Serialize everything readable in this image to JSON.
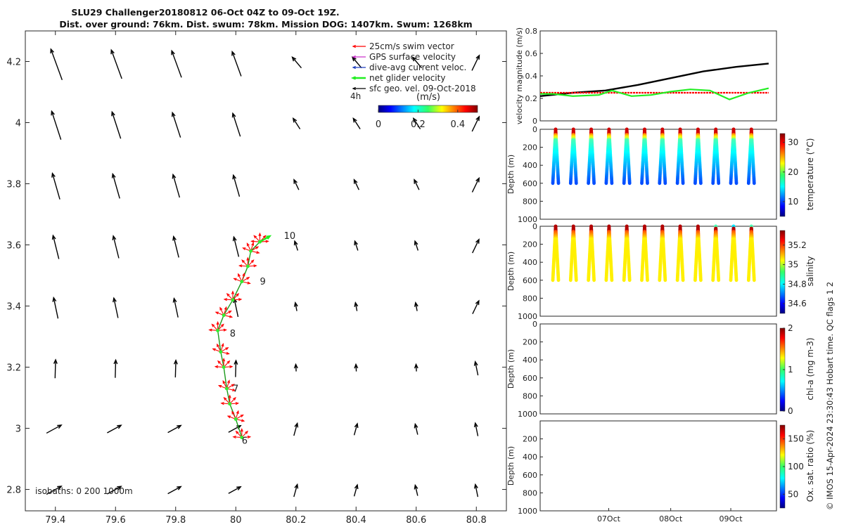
{
  "title": {
    "line1": "SLU29 Challenger20180812 06-Oct 04Z to 09-Oct 19Z.",
    "line2": "Dist. over ground: 76km. Dist. swum: 78km. Mission DOG: 1407km. Swum: 1268km"
  },
  "legend": {
    "items": [
      {
        "label": "25cm/s swim vector",
        "color": "#ff0000"
      },
      {
        "label": "GPS surface velocity",
        "color": "#cc33cc"
      },
      {
        "label": "dive-avg current veloc.",
        "color": "#1f3fbf"
      },
      {
        "label": "net glider velocity",
        "color": "#22ee22"
      },
      {
        "label": "sfc geo. vel. 09-Oct-2018",
        "color": "#000000"
      }
    ]
  },
  "map_labels": {
    "four_h": "4h",
    "units": "(m/s)",
    "isobaths": "isobaths: 0   200  1000m",
    "day_labels": [
      {
        "text": "10",
        "lon": 80.16,
        "lat": 3.62
      },
      {
        "text": "9",
        "lon": 80.08,
        "lat": 3.47
      },
      {
        "text": "8",
        "lon": 79.98,
        "lat": 3.3
      },
      {
        "text": "7",
        "lon": 79.99,
        "lat": 3.12
      },
      {
        "text": "6",
        "lon": 80.02,
        "lat": 2.95
      }
    ]
  },
  "footer": {
    "side_text": "© IMOS 15-Apr-2024 23:30:43 Hobart time. QC flags 1  2"
  },
  "chart_data": [
    {
      "type": "scatter",
      "name": "map",
      "xlim": [
        79.3,
        80.9
      ],
      "ylim": [
        2.73,
        4.3
      ],
      "xticks": [
        "79.4",
        "79.6",
        "79.8",
        "80",
        "80.2",
        "80.4",
        "80.6",
        "80.8"
      ],
      "yticks": [
        "2.8",
        "3",
        "3.2",
        "3.4",
        "3.6",
        "3.8",
        "4",
        "4.2"
      ],
      "colorbar": {
        "range": [
          0,
          0.5
        ],
        "ticks": [
          "0",
          "0.2",
          "0.4"
        ]
      },
      "glider_track": [
        [
          80.02,
          2.97
        ],
        [
          80.0,
          3.03
        ],
        [
          79.98,
          3.08
        ],
        [
          79.97,
          3.13
        ],
        [
          79.96,
          3.2
        ],
        [
          79.95,
          3.25
        ],
        [
          79.94,
          3.32
        ],
        [
          79.96,
          3.37
        ],
        [
          79.99,
          3.42
        ],
        [
          80.02,
          3.48
        ],
        [
          80.04,
          3.53
        ],
        [
          80.05,
          3.58
        ],
        [
          80.08,
          3.61
        ]
      ]
    },
    {
      "type": "line",
      "name": "velocity",
      "ylabel": "velocity magnitude (m/s)",
      "ylim": [
        0,
        0.8
      ],
      "yticks": [
        "0",
        "0.2",
        "0.4",
        "0.6",
        "0.8"
      ],
      "xlim": [
        0,
        3.62
      ],
      "series": [
        {
          "color": "#000000",
          "x": [
            0,
            0.5,
            1,
            1.5,
            2,
            2.5,
            3,
            3.5
          ],
          "y": [
            0.22,
            0.25,
            0.27,
            0.32,
            0.38,
            0.44,
            0.48,
            0.51
          ]
        },
        {
          "color": "#ff0000",
          "x": [
            0,
            3.5
          ],
          "y": [
            0.25,
            0.25
          ]
        },
        {
          "color": "#22ee22",
          "x": [
            0,
            0.2,
            0.5,
            0.9,
            1.1,
            1.4,
            1.7,
            2.0,
            2.3,
            2.6,
            2.9,
            3.2,
            3.5
          ],
          "y": [
            0.24,
            0.24,
            0.22,
            0.23,
            0.27,
            0.22,
            0.23,
            0.26,
            0.28,
            0.27,
            0.19,
            0.25,
            0.29
          ]
        }
      ]
    },
    {
      "type": "scatter",
      "name": "temperature",
      "ylabel": "Depth (m)",
      "clabel": "temperature (°C)",
      "ylim": [
        0,
        1000
      ],
      "yticks": [
        "0",
        "200",
        "400",
        "600",
        "800",
        "1000"
      ],
      "cticks": [
        "10",
        "20",
        "30"
      ],
      "crange": [
        5,
        33
      ]
    },
    {
      "type": "scatter",
      "name": "salinity",
      "ylabel": "Depth (m)",
      "clabel": "salinity",
      "ylim": [
        0,
        1000
      ],
      "yticks": [
        "0",
        "200",
        "400",
        "600",
        "800",
        "1000"
      ],
      "cticks": [
        "34.6",
        "34.8",
        "35",
        "35.2"
      ],
      "crange": [
        34.5,
        35.35
      ]
    },
    {
      "type": "scatter",
      "name": "chl",
      "ylabel": "Depth (m)",
      "clabel": "chl-a (mg m-3)",
      "ylim": [
        0,
        1000
      ],
      "yticks": [
        "0",
        "200",
        "400",
        "600",
        "800",
        "1000"
      ],
      "cticks": [
        "0",
        "1",
        "2"
      ],
      "crange": [
        0,
        2
      ]
    },
    {
      "type": "scatter",
      "name": "oxygen",
      "ylabel": "Depth (m)",
      "clabel": "Ox. sat. ratio (%)",
      "ylim": [
        0,
        1000
      ],
      "yticks": [
        "200",
        "400",
        "600",
        "800",
        "1000"
      ],
      "cticks": [
        "50",
        "100",
        "150"
      ],
      "crange": [
        25,
        175
      ],
      "xticks": [
        "07Oct",
        "08Oct",
        "09Oct"
      ]
    }
  ]
}
